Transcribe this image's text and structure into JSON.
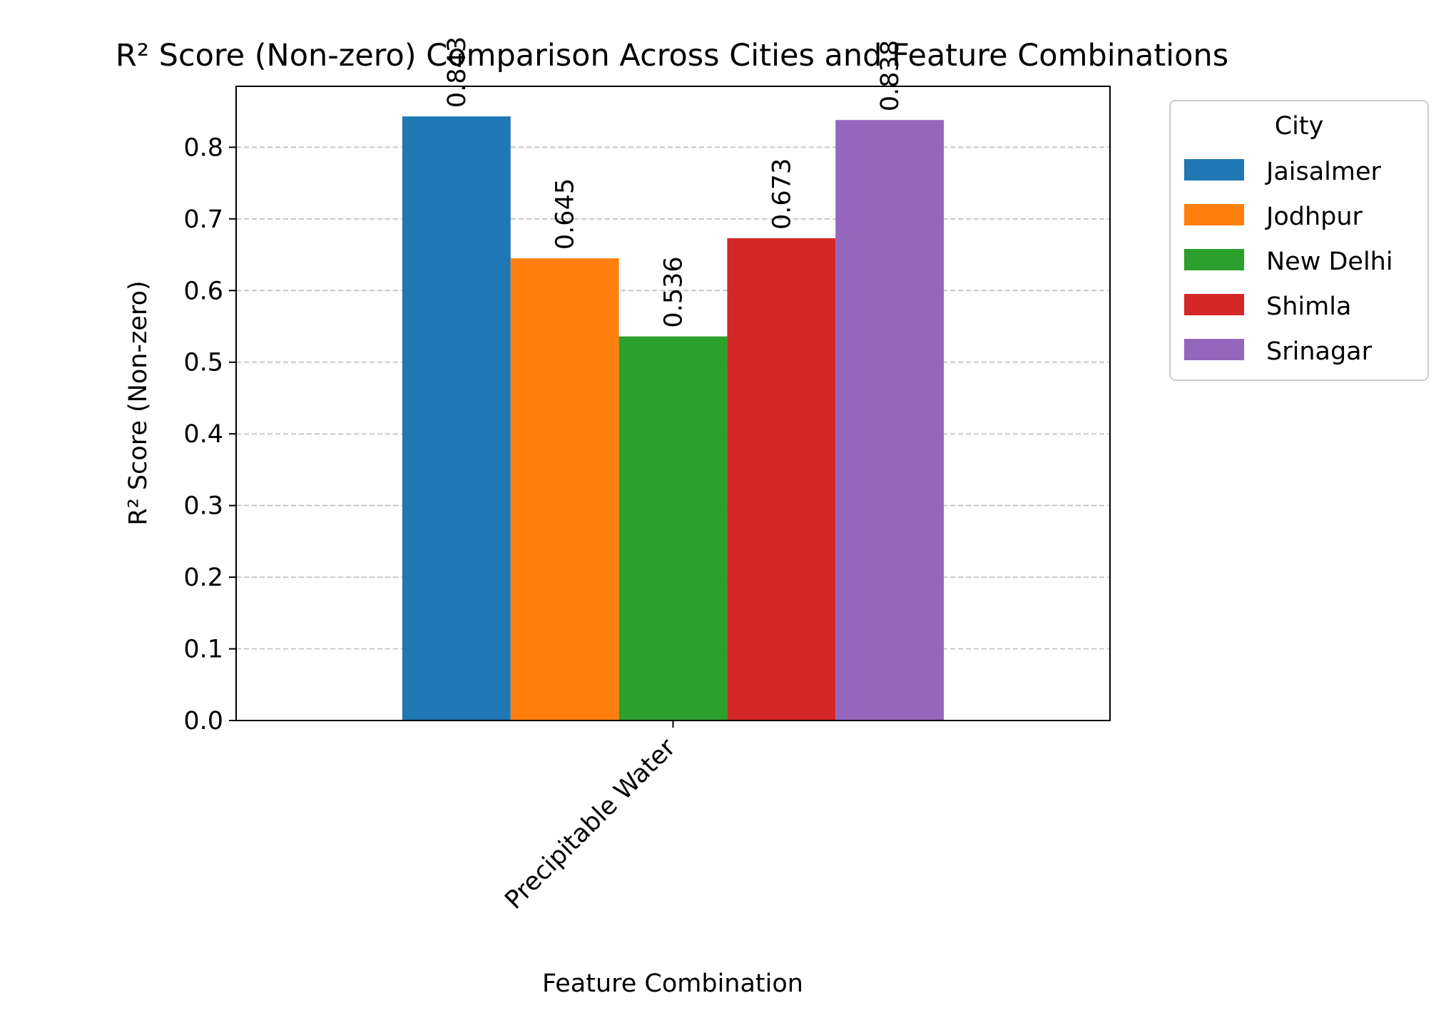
{
  "chart_data": {
    "type": "bar",
    "title": "R² Score (Non-zero) Comparison Across Cities and Feature Combinations",
    "xlabel": "Feature Combination",
    "ylabel": "R² Score (Non-zero)",
    "categories": [
      "Precipitable Water"
    ],
    "ylim": [
      0,
      0.885
    ],
    "yticks": [
      "0.0",
      "0.1",
      "0.2",
      "0.3",
      "0.4",
      "0.5",
      "0.6",
      "0.7",
      "0.8"
    ],
    "grid": "y-dashed",
    "legend": {
      "title": "City",
      "placement": "outside-right"
    },
    "series": [
      {
        "name": "Jaisalmer",
        "values": [
          0.843
        ],
        "label": "0.843",
        "color": "#1f77b4"
      },
      {
        "name": "Jodhpur",
        "values": [
          0.645
        ],
        "label": "0.645",
        "color": "#ff7f0e"
      },
      {
        "name": "New Delhi",
        "values": [
          0.536
        ],
        "label": "0.536",
        "color": "#2ca02c"
      },
      {
        "name": "Shimla",
        "values": [
          0.673
        ],
        "label": "0.673",
        "color": "#d62728"
      },
      {
        "name": "Srinagar",
        "values": [
          0.838
        ],
        "label": "0.838",
        "color": "#9467bd"
      }
    ]
  }
}
